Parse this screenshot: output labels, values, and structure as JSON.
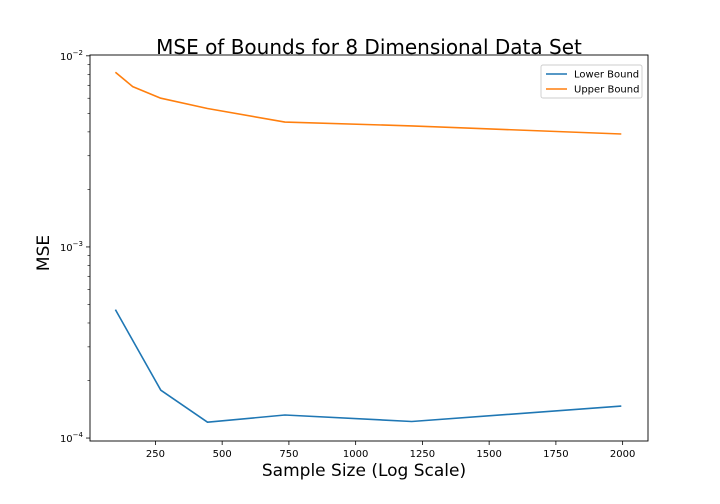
{
  "chart_data": {
    "type": "line",
    "title": "MSE of Bounds for 8 Dimensional Data Set",
    "xlabel": "Sample Size (Log Scale)",
    "ylabel": "MSE",
    "xlim": [
      5,
      2095
    ],
    "ylim": [
      9.65e-05,
      0.0101
    ],
    "y_scale": "log",
    "x_ticks": [
      250,
      500,
      750,
      1000,
      1250,
      1500,
      1750,
      2000
    ],
    "x_tick_labels": [
      "250",
      "500",
      "750",
      "1000",
      "1250",
      "1500",
      "1750",
      "2000"
    ],
    "y_ticks": [
      {
        "value": 0.0001,
        "base": "10",
        "exp": "−4"
      },
      {
        "value": 0.001,
        "base": "10",
        "exp": "−3"
      },
      {
        "value": 0.01,
        "base": "10",
        "exp": "−2"
      }
    ],
    "grid": false,
    "legend_position": "top-right",
    "series": [
      {
        "name": "Lower Bound",
        "color": "#1f77b4",
        "x": [
          100,
          270,
          445,
          735,
          1210,
          1995
        ],
        "y": [
          0.00047,
          0.000178,
          0.000121,
          0.000132,
          0.000122,
          0.000147
        ]
      },
      {
        "name": "Upper Bound",
        "color": "#ff7f0e",
        "x": [
          100,
          165,
          270,
          445,
          735,
          1210,
          1995
        ],
        "y": [
          0.0082,
          0.0069,
          0.006,
          0.0053,
          0.0045,
          0.0043,
          0.0039
        ]
      }
    ]
  }
}
